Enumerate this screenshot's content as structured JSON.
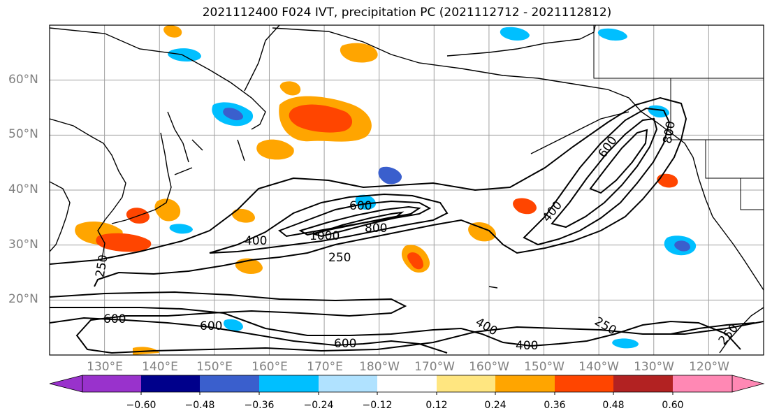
{
  "title": "2021112400 F024 IVT, precipitation PC (2021112712 - 2021112812)",
  "map": {
    "projection": "cylindrical",
    "lon_range_deg_east": [
      120,
      250
    ],
    "lat_range": [
      10,
      70
    ],
    "gridlines": true,
    "lat_labels": [
      "60°N",
      "50°N",
      "40°N",
      "30°N",
      "20°N"
    ],
    "lon_labels": [
      "130°E",
      "140°E",
      "150°E",
      "160°E",
      "170°E",
      "180°W",
      "170°W",
      "160°W",
      "150°W",
      "140°W",
      "130°W",
      "120°W"
    ],
    "ivt_contour_levels": [
      250,
      400,
      600,
      800,
      1000
    ],
    "ivt_contour_labels": [
      "600",
      "1000",
      "800",
      "400",
      "250",
      "250",
      "600",
      "600",
      "600",
      "400",
      "400",
      "800",
      "250",
      "400",
      "250",
      "600"
    ]
  },
  "colorbar": {
    "colors": [
      "#9932cc",
      "#00008b",
      "#3a5fcd",
      "#00bfff",
      "#b0e2ff",
      "#ffffff",
      "#ffe680",
      "#ffa500",
      "#ff4500",
      "#b22222",
      "#ff88b4"
    ],
    "tick_labels": [
      "−0.60",
      "−0.48",
      "−0.36",
      "−0.24",
      "−0.12",
      "0.12",
      "0.24",
      "0.36",
      "0.48",
      "0.60"
    ]
  },
  "icons": {
    "coastlines": "coastline-shape",
    "borders": "border-line"
  }
}
